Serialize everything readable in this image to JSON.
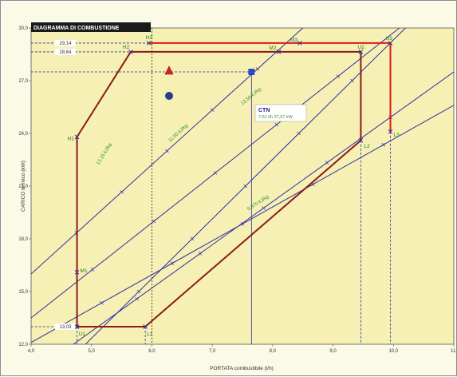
{
  "chart_data": {
    "type": "line",
    "title": "DIAGRAMMA DI COMBUSTIONE",
    "xlabel": "PORTATA combustibile (l/h)",
    "ylabel": "CARICO termico (kW)",
    "xlim": [
      4.0,
      11.0
    ],
    "ylim": [
      12.0,
      30.0
    ],
    "x_ticks": [
      "4,0",
      "5,0",
      "6,0",
      "7,0",
      "8,0",
      "9,0",
      "10,0",
      "11,"
    ],
    "y_ticks": [
      "12,0",
      "15,0",
      "18,0",
      "21,0",
      "24,0",
      "27,0",
      "30,0"
    ],
    "grid": false,
    "series": [
      {
        "name": "",
        "color": "#2e2ea0",
        "points": [
          [
            4.9,
            12.0
          ],
          [
            10.2,
            30.0
          ]
        ]
      },
      {
        "name": "",
        "color": "#2e2ea0",
        "points": [
          [
            4.0,
            13.5
          ],
          [
            10.1,
            30.0
          ]
        ]
      },
      {
        "name": "",
        "color": "#2e2ea0",
        "points": [
          [
            4.0,
            12.1
          ],
          [
            11.0,
            25.6
          ]
        ]
      },
      {
        "name": "",
        "color": "#2e2ea0",
        "points": [
          [
            4.7,
            12.0
          ],
          [
            11.0,
            27.5
          ]
        ]
      },
      {
        "name": "",
        "color": "#2e2ea0",
        "points": [
          [
            4.0,
            16.0
          ],
          [
            8.5,
            30.0
          ]
        ]
      }
    ],
    "polygons": [
      {
        "color": "#8b1a1a",
        "points": [
          [
            4.76,
            13.0
          ],
          [
            5.89,
            13.0
          ],
          [
            9.46,
            23.6
          ],
          [
            9.46,
            28.64
          ],
          [
            5.65,
            28.64
          ],
          [
            4.76,
            23.8
          ]
        ]
      },
      {
        "color": "#e01818",
        "points": [
          [
            5.95,
            29.14
          ],
          [
            9.95,
            29.14
          ],
          [
            9.95,
            24.1
          ]
        ]
      }
    ],
    "points": [
      {
        "label": "H1",
        "x": 4.76,
        "y": 23.8
      },
      {
        "label": "H2",
        "x": 5.65,
        "y": 28.64
      },
      {
        "label": "H3",
        "x": 5.95,
        "y": 29.14
      },
      {
        "label": "M1",
        "x": 4.76,
        "y": 16.1
      },
      {
        "label": "M2",
        "x": 8.1,
        "y": 28.64
      },
      {
        "label": "M3",
        "x": 8.45,
        "y": 29.14
      },
      {
        "label": "U1",
        "x": 4.76,
        "y": 13.0
      },
      {
        "label": "U2",
        "x": 9.46,
        "y": 28.64
      },
      {
        "label": "U3",
        "x": 9.95,
        "y": 29.14
      },
      {
        "label": "L1",
        "x": 5.89,
        "y": 13.0
      },
      {
        "label": "L2",
        "x": 9.46,
        "y": 23.6
      },
      {
        "label": "L3",
        "x": 9.95,
        "y": 24.1
      }
    ],
    "ctn": {
      "label": "CTN",
      "value": "7,61 l/h  27,07 kW",
      "x": 7.65,
      "y": 27.5
    },
    "readouts": [
      {
        "text": "29,14",
        "y": 29.14
      },
      {
        "text": "28,64",
        "y": 28.64
      },
      {
        "text": "13,03",
        "y": 13.0
      }
    ],
    "line_labels": [
      "12,15 kJ/kg",
      "11,00 kJ/kg",
      "13,59 kJ/kg",
      "9,870 kJ/kg"
    ],
    "vline_x": 6.0
  }
}
